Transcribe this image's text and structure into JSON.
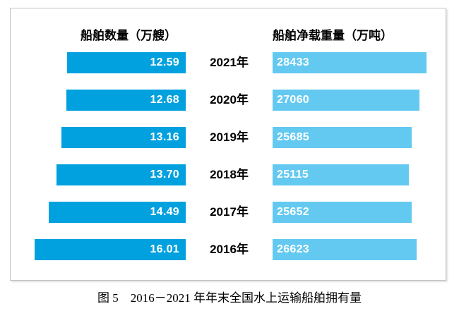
{
  "chart_data": {
    "type": "bar",
    "variant": "tornado-paired-horizontal",
    "categories": [
      "2021年",
      "2020年",
      "2019年",
      "2018年",
      "2017年",
      "2016年"
    ],
    "series": [
      {
        "name": "船舶数量（万艘）",
        "side": "left",
        "values": [
          12.59,
          12.68,
          13.16,
          13.7,
          14.49,
          16.01
        ],
        "labels": [
          "12.59",
          "12.68",
          "13.16",
          "13.70",
          "14.49",
          "16.01"
        ],
        "color": "#00A1DE",
        "value_label_align": "inside-right"
      },
      {
        "name": "船舶净载重量（万吨）",
        "side": "right",
        "values": [
          28433,
          27060,
          25685,
          25115,
          25652,
          26623
        ],
        "labels": [
          "28433",
          "27060",
          "25685",
          "25115",
          "25652",
          "26623"
        ],
        "color": "#63C9F1",
        "value_label_align": "inside-left"
      }
    ],
    "value_label_color": "#FFFFFF",
    "grid": false,
    "axis_ticks": "none",
    "headers_position": "top",
    "category_label_position": "center-between-bars"
  },
  "caption": "图 5　2016－2021 年年末全国水上运输船舶拥有量"
}
